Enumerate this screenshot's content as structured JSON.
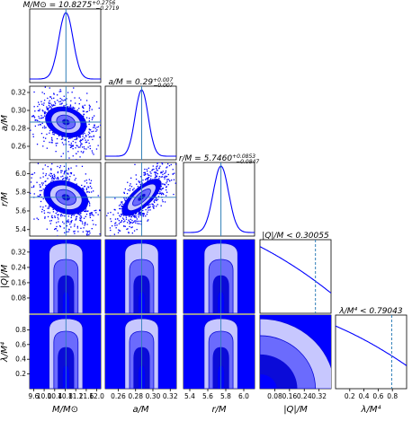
{
  "chart_data": {
    "type": "corner",
    "params": [
      {
        "key": "M",
        "label_main": "M/M",
        "label_sub": "⊙",
        "axis_label": "M/M⊙",
        "title": "M/M⊙ = 10.8275",
        "title_sup": "+0.2756",
        "title_sub": "−0.2719",
        "range": [
          9.45,
          12.15
        ],
        "median": 10.8275,
        "sigma": 0.27,
        "ticks": [
          9.6,
          10.0,
          10.4,
          10.8,
          11.2,
          11.6,
          12.0
        ],
        "tick_labels": [
          "9.6",
          "10.0",
          "10.4",
          "10.8",
          "11.2",
          "11.6",
          "12.0"
        ]
      },
      {
        "key": "a",
        "axis_label": "a/M",
        "title": "a/M = 0.29",
        "title_sup": "+0.007",
        "title_sub": "−0.007",
        "range": [
          0.245,
          0.327
        ],
        "median": 0.287,
        "sigma": 0.0075,
        "ticks": [
          0.26,
          0.28,
          0.3,
          0.32
        ],
        "tick_labels": [
          "0.26",
          "0.28",
          "0.30",
          "0.32"
        ]
      },
      {
        "key": "r",
        "axis_label": "r/M",
        "title": "r/M = 5.7460",
        "title_sup": "+0.0853",
        "title_sub": "−0.0847",
        "range": [
          5.33,
          6.12
        ],
        "median": 5.746,
        "sigma": 0.085,
        "ticks": [
          5.4,
          5.6,
          5.8,
          6.0
        ],
        "tick_labels": [
          "5.4",
          "5.6",
          "5.8",
          "6.0"
        ]
      },
      {
        "key": "Q",
        "axis_label": "|Q|/M",
        "title": "|Q|/M < 0.30055",
        "range": [
          0.0,
          0.385
        ],
        "upper_limit": 0.30055,
        "ticks": [
          0.08,
          0.16,
          0.24,
          0.32
        ],
        "tick_labels": [
          "0.08",
          "0.16",
          "0.24",
          "0.32"
        ]
      },
      {
        "key": "L",
        "axis_label": "λ/M⁴",
        "title": "λ/M⁴ < 0.79043",
        "range": [
          0.0,
          1.0
        ],
        "upper_limit": 0.79043,
        "ticks": [
          0.2,
          0.4,
          0.6,
          0.8
        ],
        "tick_labels": [
          "0.2",
          "0.4",
          "0.6",
          "0.8"
        ]
      }
    ],
    "correlations": {
      "a|M": -0.35,
      "r|M": -0.35,
      "r|a": 0.75
    },
    "colors": {
      "samples": "#0000ff",
      "contour": "#0b0bd8",
      "fill_1sigma": "#6b6bfd",
      "fill_2sigma": "#c7c7fe",
      "truth_line": "#2f7fb8",
      "limit_line": "#2f7fb8"
    }
  }
}
